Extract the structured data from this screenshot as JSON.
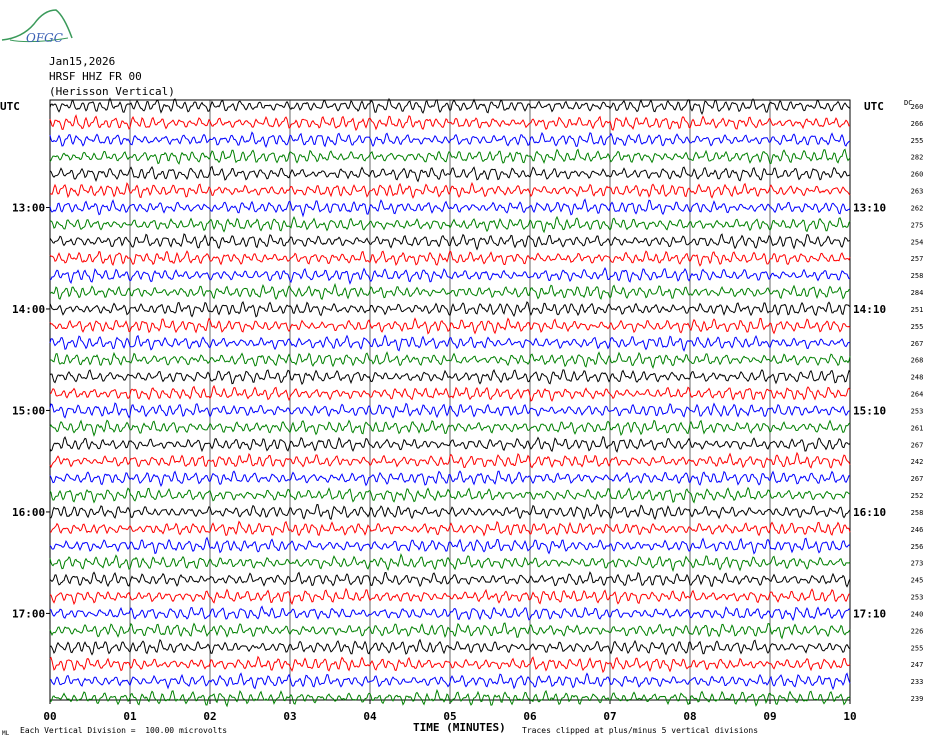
{
  "logo": {
    "text": "OFGC"
  },
  "header": {
    "date": "Jan15,2026",
    "station": "HRSF HHZ FR 00",
    "location": "(Herisson Vertical)"
  },
  "chart_data": {
    "type": "line",
    "title": "",
    "xlabel": "TIME (MINUTES)",
    "x_ticks": [
      "00",
      "01",
      "02",
      "03",
      "04",
      "05",
      "06",
      "07",
      "08",
      "09",
      "10"
    ],
    "xlim": [
      0,
      10
    ],
    "left_axis_label": "UTC",
    "right_axis_label": "UTC",
    "dc_label": "DC",
    "left_time_labels": [
      "13:00",
      "14:00",
      "15:00",
      "16:00",
      "17:00"
    ],
    "right_time_labels": [
      "13:10",
      "14:10",
      "15:10",
      "16:10",
      "17:10"
    ],
    "trace_colors": [
      "#000000",
      "#ff0000",
      "#0000ff",
      "#008000"
    ],
    "dc_offsets": [
      260,
      266,
      255,
      282,
      260,
      263,
      262,
      275,
      254,
      257,
      258,
      284,
      251,
      255,
      267,
      268,
      248,
      264,
      253,
      261,
      267,
      242,
      267,
      252,
      258,
      246,
      256,
      273,
      245,
      253,
      240,
      226,
      255,
      247,
      233,
      239
    ],
    "grid": true
  },
  "footer": {
    "left_note": "Each Vertical Division =  100.00 microvolts",
    "right_note": "Traces clipped at plus/minus 5 vertical divisions",
    "corner_mark": "ML"
  }
}
